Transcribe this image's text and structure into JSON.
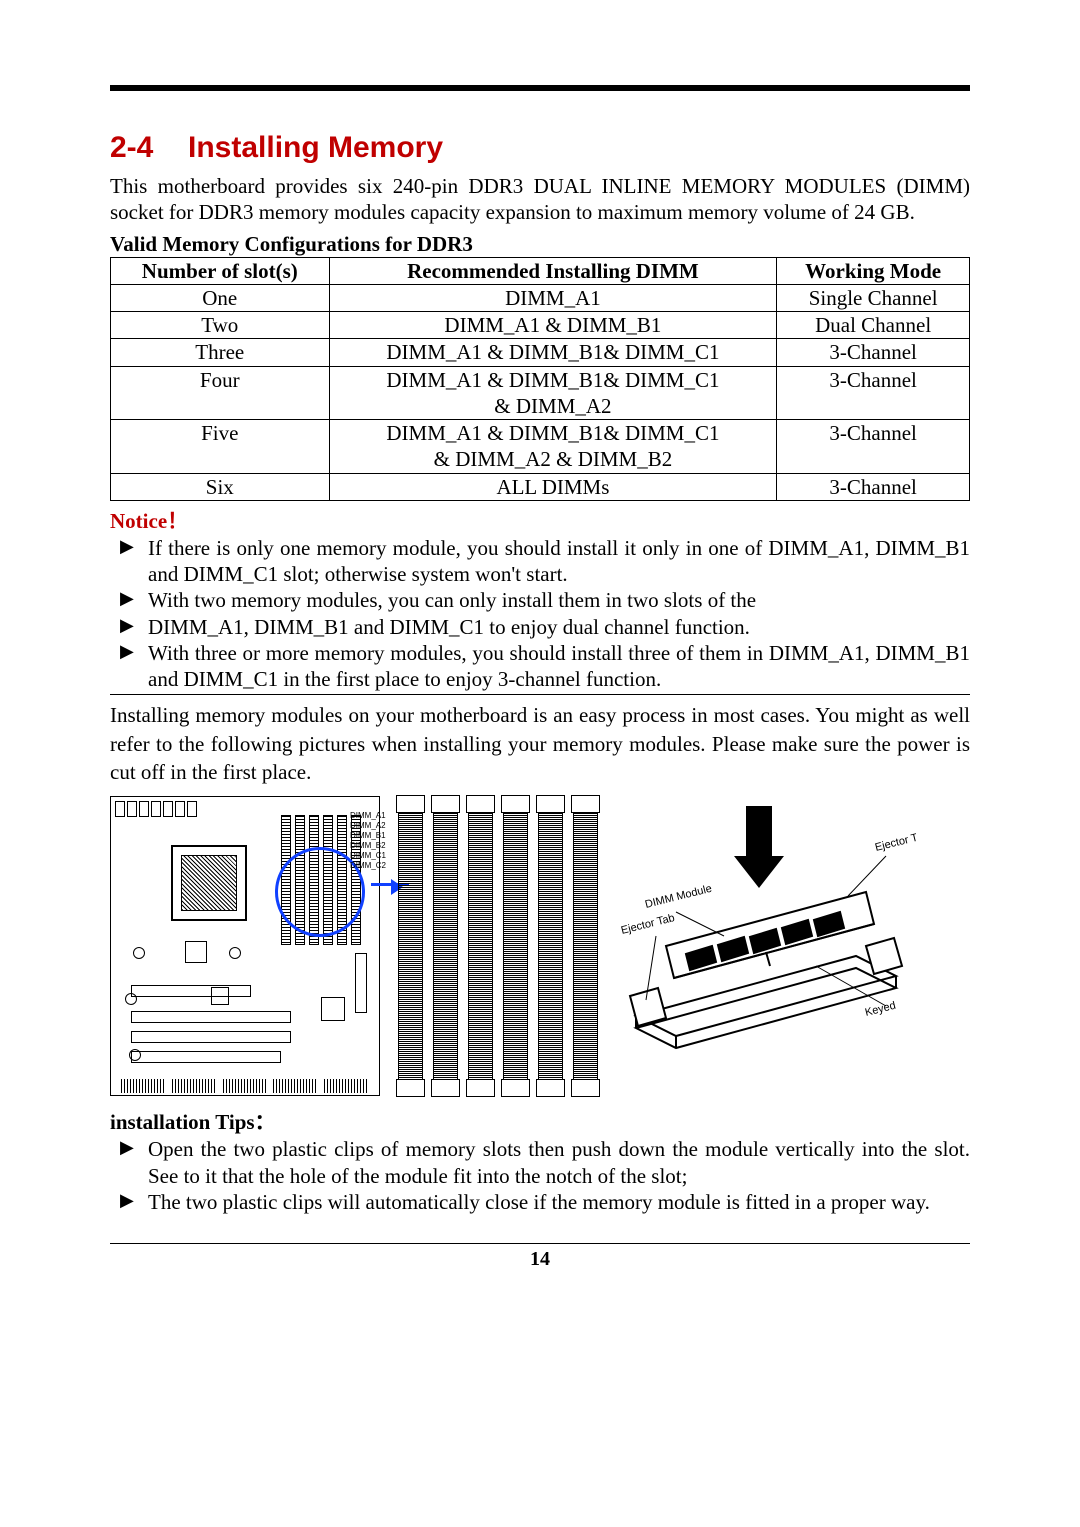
{
  "heading": {
    "number": "2-4",
    "title": "Installing Memory"
  },
  "intro": "This motherboard provides six 240-pin DDR3 DUAL INLINE MEMORY MODULES (DIMM) socket for DDR3 memory modules capacity expansion to maximum memory volume of 24 GB.",
  "table": {
    "caption": "Valid Memory Configurations for DDR3",
    "headers": [
      "Number of slot(s)",
      "Recommended Installing DIMM",
      "Working Mode"
    ],
    "rows": [
      [
        "One",
        "DIMM_A1",
        "Single Channel"
      ],
      [
        "Two",
        "DIMM_A1 & DIMM_B1",
        "Dual Channel"
      ],
      [
        "Three",
        "DIMM_A1 & DIMM_B1& DIMM_C1",
        "3-Channel"
      ],
      [
        "Four",
        "DIMM_A1 & DIMM_B1& DIMM_C1\n&   DIMM_A2",
        "3-Channel"
      ],
      [
        "Five",
        "DIMM_A1 & DIMM_B1& DIMM_C1\n&   DIMM_A2 & DIMM_B2",
        "3-Channel"
      ],
      [
        "Six",
        "ALL DIMMs",
        "3-Channel"
      ]
    ]
  },
  "notice": {
    "title": "Notice！",
    "items": [
      "If there is only one memory module, you should install it only in one of DIMM_A1, DIMM_B1 and DIMM_C1 slot; otherwise system won't start.",
      "With two memory modules, you can only install them in two slots of the",
      "DIMM_A1, DIMM_B1 and DIMM_C1 to enjoy dual channel function.",
      "With three or more memory modules, you should install three of them in DIMM_A1, DIMM_B1 and DIMM_C1 in the first place to enjoy 3-channel function."
    ]
  },
  "para2": "Installing memory modules on your motherboard is an easy process in most cases. You might as well refer to the following pictures when installing your memory modules. Please make sure the power is cut off in the first place.",
  "slot_labels": [
    "DIMM_A1",
    "DIMM_A2",
    "DIMM_B1",
    "DIMM_B2",
    "DIMM_C1",
    "DIMM_C2"
  ],
  "sketch_labels": {
    "ejector_top": "Ejector Tab",
    "module": "DIMM Module",
    "ejector_bot": "Ejector Tab",
    "keyed": "Keyed"
  },
  "tips": {
    "title": "installation Tips：",
    "items": [
      "Open the two plastic clips of memory slots then push down the module vertically into the slot. See to it that the hole of the module fit into the notch of the slot;",
      "The two plastic clips will automatically close if the memory module is fitted in a proper way."
    ]
  },
  "page_number": "14",
  "colors": {
    "accent": "#c00000",
    "circle": "#1040ff"
  }
}
